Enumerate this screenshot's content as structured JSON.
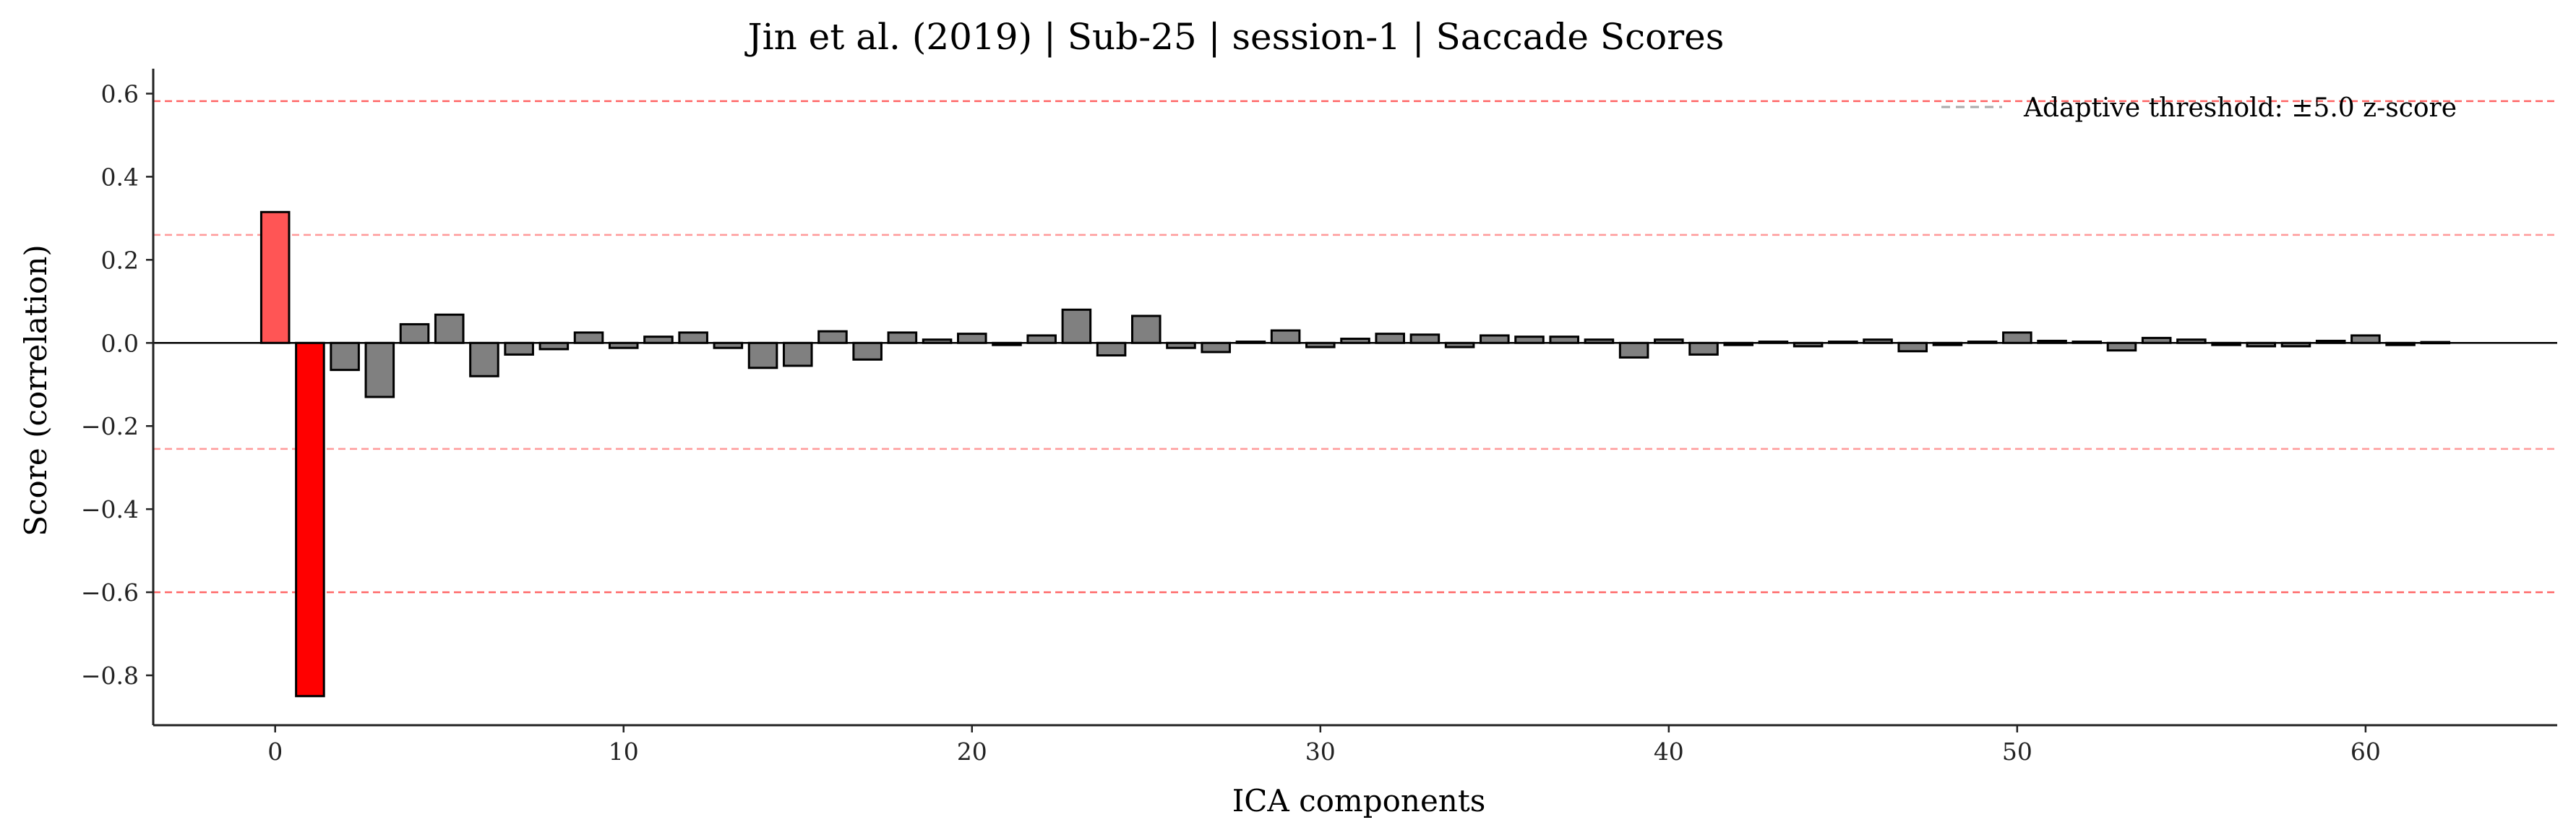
{
  "chart_data": {
    "type": "bar",
    "title": "Jin et al. (2019) | Sub-25 | session-1 | Saccade Scores",
    "xlabel": "ICA components",
    "ylabel": "Score (correlation)",
    "xlim": [
      -3.5,
      65.5
    ],
    "ylim": [
      -0.92,
      0.66
    ],
    "xticks": [
      0,
      10,
      20,
      30,
      40,
      50,
      60
    ],
    "yticks": [
      -0.8,
      -0.6,
      -0.4,
      -0.2,
      0.0,
      0.2,
      0.4,
      0.6
    ],
    "ytick_labels": [
      "−0.8",
      "−0.6",
      "−0.4",
      "−0.2",
      "0.0",
      "0.2",
      "0.4",
      "0.6"
    ],
    "x": [
      0,
      1,
      2,
      3,
      4,
      5,
      6,
      7,
      8,
      9,
      10,
      11,
      12,
      13,
      14,
      15,
      16,
      17,
      18,
      19,
      20,
      21,
      22,
      23,
      24,
      25,
      26,
      27,
      28,
      29,
      30,
      31,
      32,
      33,
      34,
      35,
      36,
      37,
      38,
      39,
      40,
      41,
      42,
      43,
      44,
      45,
      46,
      47,
      48,
      49,
      50,
      51,
      52,
      53,
      54,
      55,
      56,
      57,
      58,
      59,
      60,
      61,
      62
    ],
    "values": [
      0.315,
      -0.85,
      -0.065,
      -0.13,
      0.045,
      0.068,
      -0.08,
      -0.028,
      -0.015,
      0.025,
      -0.012,
      0.015,
      0.025,
      -0.012,
      -0.06,
      -0.055,
      0.028,
      -0.04,
      0.025,
      0.008,
      0.022,
      -0.005,
      0.018,
      0.08,
      -0.03,
      0.065,
      -0.012,
      -0.022,
      0.003,
      0.03,
      -0.01,
      0.01,
      0.022,
      0.02,
      -0.01,
      0.018,
      0.015,
      0.015,
      0.008,
      -0.035,
      0.008,
      -0.028,
      -0.005,
      0.003,
      -0.008,
      0.003,
      0.008,
      -0.02,
      -0.005,
      0.003,
      0.025,
      0.005,
      0.003,
      -0.018,
      0.012,
      0.008,
      -0.005,
      -0.008,
      -0.008,
      0.005,
      0.018,
      -0.005,
      0.002
    ],
    "bar_colors": {
      "default": "#808080",
      "flagged_primary": "#ff0000",
      "flagged_secondary": "#ff5555",
      "edge": "#000000"
    },
    "flagged": {
      "0": "flagged_secondary",
      "1": "flagged_primary"
    },
    "threshold_lines": [
      {
        "y": 0.582,
        "color": "#ff6666",
        "style": "dashed"
      },
      {
        "y": 0.26,
        "color": "#ff9999",
        "style": "dashed"
      },
      {
        "y": -0.255,
        "color": "#ff9999",
        "style": "dashed"
      },
      {
        "y": -0.6,
        "color": "#ff6666",
        "style": "dashed"
      }
    ],
    "legend": {
      "placement": "top-right",
      "entries": [
        {
          "label": "Adaptive threshold: ±5.0 z-score",
          "color": "#aaaaaa",
          "style": "dashed"
        }
      ]
    },
    "grid": false
  }
}
